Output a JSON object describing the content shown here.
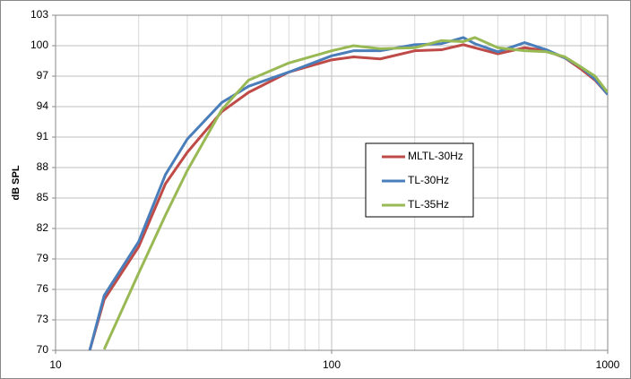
{
  "chart_data": {
    "type": "line",
    "ylabel": "dB SPL",
    "x": [
      13.3,
      15,
      20,
      25,
      30,
      40,
      50,
      70,
      100,
      120,
      150,
      200,
      250,
      300,
      330,
      400,
      500,
      600,
      700,
      800,
      900,
      1000
    ],
    "series": [
      {
        "name": "MLTL-30Hz",
        "color": "#be4b48",
        "values": [
          70,
          75,
          80.2,
          86.4,
          89.5,
          93.5,
          95.4,
          97.4,
          98.6,
          98.9,
          98.7,
          99.5,
          99.6,
          100.1,
          99.8,
          99.2,
          99.8,
          99.5,
          98.8,
          97.7,
          96.6,
          95.2
        ]
      },
      {
        "name": "TL-30Hz",
        "color": "#4a7ebb",
        "values": [
          70,
          75.4,
          80.7,
          87.3,
          90.8,
          94.4,
          96,
          97.4,
          99,
          99.5,
          99.5,
          100.1,
          100.2,
          100.8,
          100.2,
          99.4,
          100.3,
          99.6,
          98.8,
          97.9,
          96.7,
          95.2
        ]
      },
      {
        "name": "TL-35Hz",
        "color": "#98b954",
        "values": [
          null,
          70.1,
          77.6,
          83.3,
          87.7,
          93.7,
          96.6,
          98.3,
          99.5,
          100,
          99.7,
          99.8,
          100.5,
          100.4,
          100.8,
          99.8,
          99.5,
          99.4,
          98.9,
          97.9,
          97,
          95.4
        ]
      }
    ],
    "xlim": [
      10,
      1000
    ],
    "xticks": [
      10,
      100,
      1000
    ],
    "xscale": "log",
    "ylim": [
      70,
      103
    ],
    "yticks": [
      70,
      73,
      76,
      79,
      82,
      85,
      88,
      91,
      94,
      97,
      100,
      103
    ],
    "grid": true,
    "minor_grid": true,
    "legend": "center"
  }
}
